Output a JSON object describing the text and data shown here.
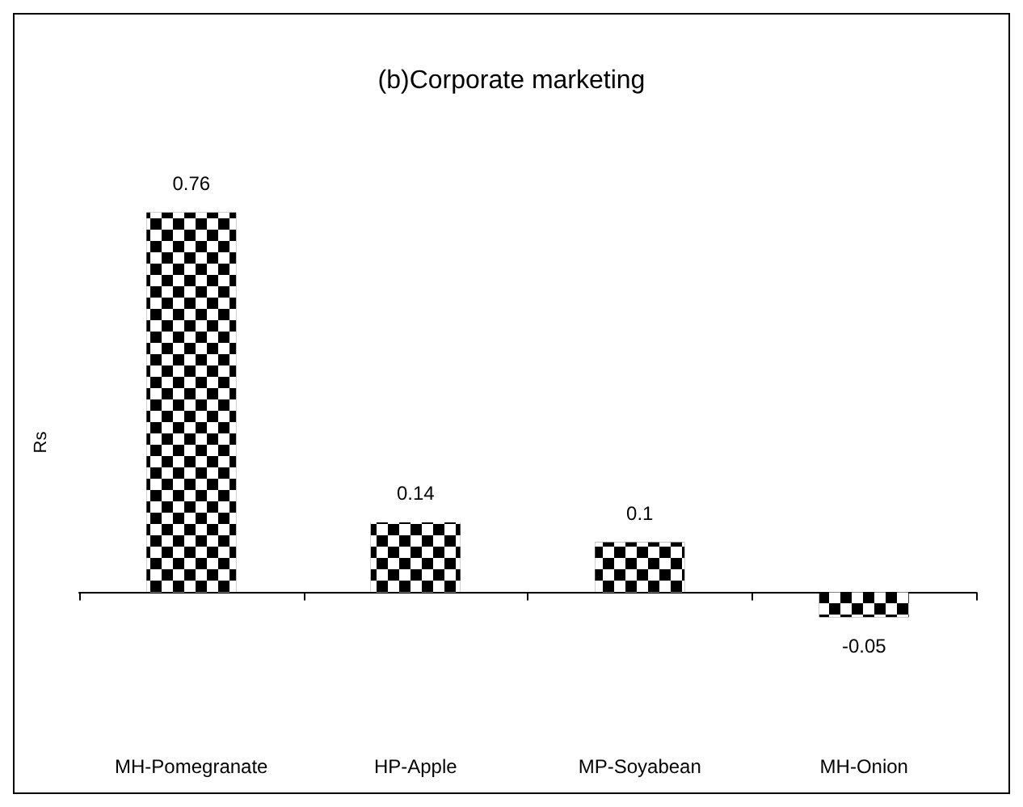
{
  "chart_data": {
    "type": "bar",
    "title": "(b)Corporate marketing",
    "ylabel": "Rs",
    "categories": [
      "MH-Pomegranate",
      "HP-Apple",
      "MP-Soyabean",
      "MH-Onion"
    ],
    "values": [
      0.76,
      0.14,
      0.1,
      -0.05
    ],
    "color": "#000000",
    "data_labels": true,
    "grid": false,
    "tick_labels": "x"
  }
}
